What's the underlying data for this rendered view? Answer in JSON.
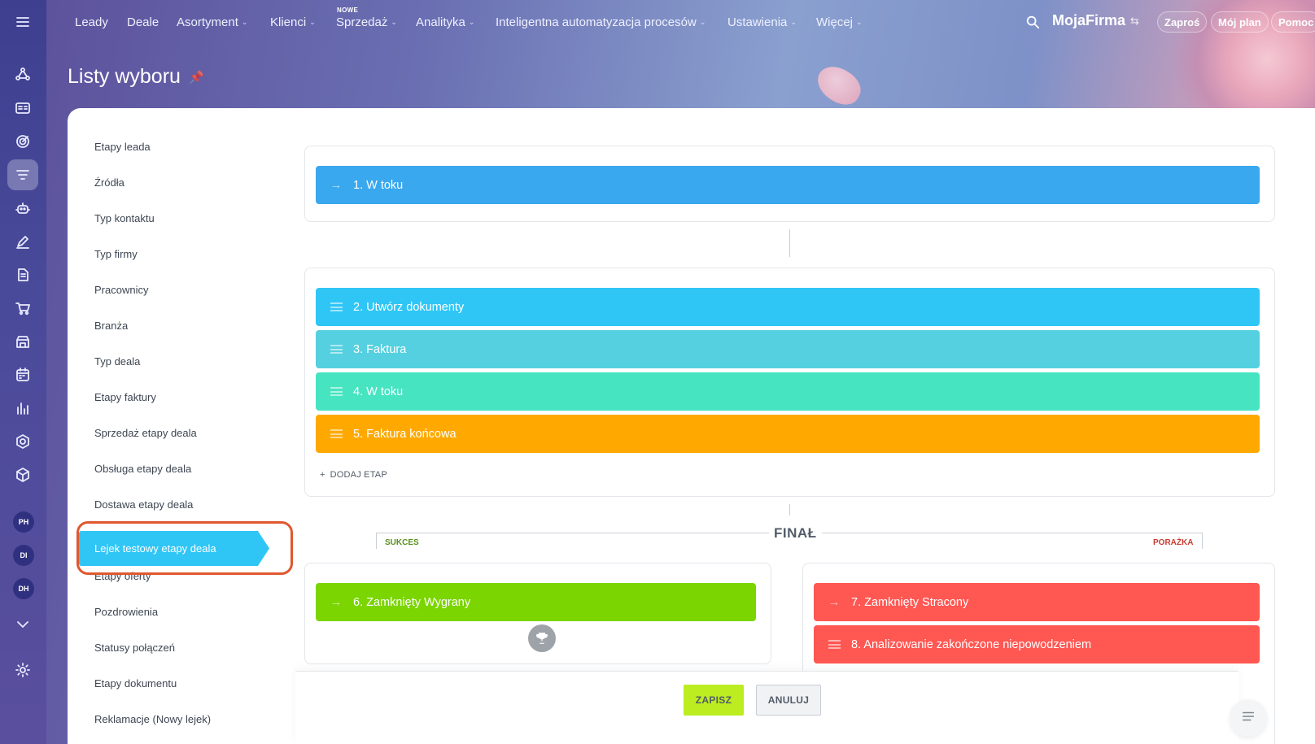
{
  "nav": {
    "badge_new": "NOWE",
    "items": [
      {
        "label": "Leady",
        "chevron": false
      },
      {
        "label": "Deale",
        "chevron": false
      },
      {
        "label": "Asortyment",
        "chevron": true
      },
      {
        "label": "Klienci",
        "chevron": true
      },
      {
        "label": "Sprzedaż",
        "chevron": true
      },
      {
        "label": "Analityka",
        "chevron": true
      },
      {
        "label": "Inteligentna automatyzacja procesów",
        "chevron": true
      },
      {
        "label": "Ustawienia",
        "chevron": true
      },
      {
        "label": "Więcej",
        "chevron": true
      }
    ],
    "brand": "MojaFirma",
    "invite": "Zaproś",
    "my_plan": "Mój plan",
    "help": "Pomoc"
  },
  "rail": {
    "avatars": [
      "PH",
      "DI",
      "DH"
    ]
  },
  "page": {
    "title": "Listy wyboru"
  },
  "sidebar": {
    "items": [
      "Etapy leada",
      "Źródła",
      "Typ kontaktu",
      "Typ firmy",
      "Pracownicy",
      "Branża",
      "Typ deala",
      "Etapy faktury",
      "Sprzedaż etapy deala",
      "Obsługa etapy deala",
      "Dostawa etapy deala",
      "Lejek testowy etapy deala",
      "Etapy oferty",
      "Pozdrowienia",
      "Statusy połączeń",
      "Etapy dokumentu",
      "Reklamacje (Nowy lejek)"
    ],
    "active": "Lejek testowy etapy deala"
  },
  "stages": {
    "start": [
      {
        "label": "1. W toku",
        "color": "#39a8ef"
      }
    ],
    "middle": [
      {
        "label": "2. Utwórz dokumenty",
        "color": "#2fc6f6"
      },
      {
        "label": "3. Faktura",
        "color": "#55d0e0"
      },
      {
        "label": "4. W toku",
        "color": "#47e4c2"
      },
      {
        "label": "5. Faktura końcowa",
        "color": "#ffa900"
      }
    ],
    "add_stage": "DODAJ ETAP",
    "final_title": "FINAŁ",
    "success_label": "SUKCES",
    "failure_label": "PORAŻKA",
    "success": [
      {
        "label": "6. Zamknięty Wygrany",
        "color": "#7bd500"
      }
    ],
    "failure": [
      {
        "label": "7. Zamknięty Stracony",
        "color": "#ff5752"
      },
      {
        "label": "8. Analizowanie zakończone niepowodzeniem",
        "color": "#ff5752"
      }
    ]
  },
  "footer": {
    "save": "ZAPISZ",
    "cancel": "ANULUJ"
  }
}
